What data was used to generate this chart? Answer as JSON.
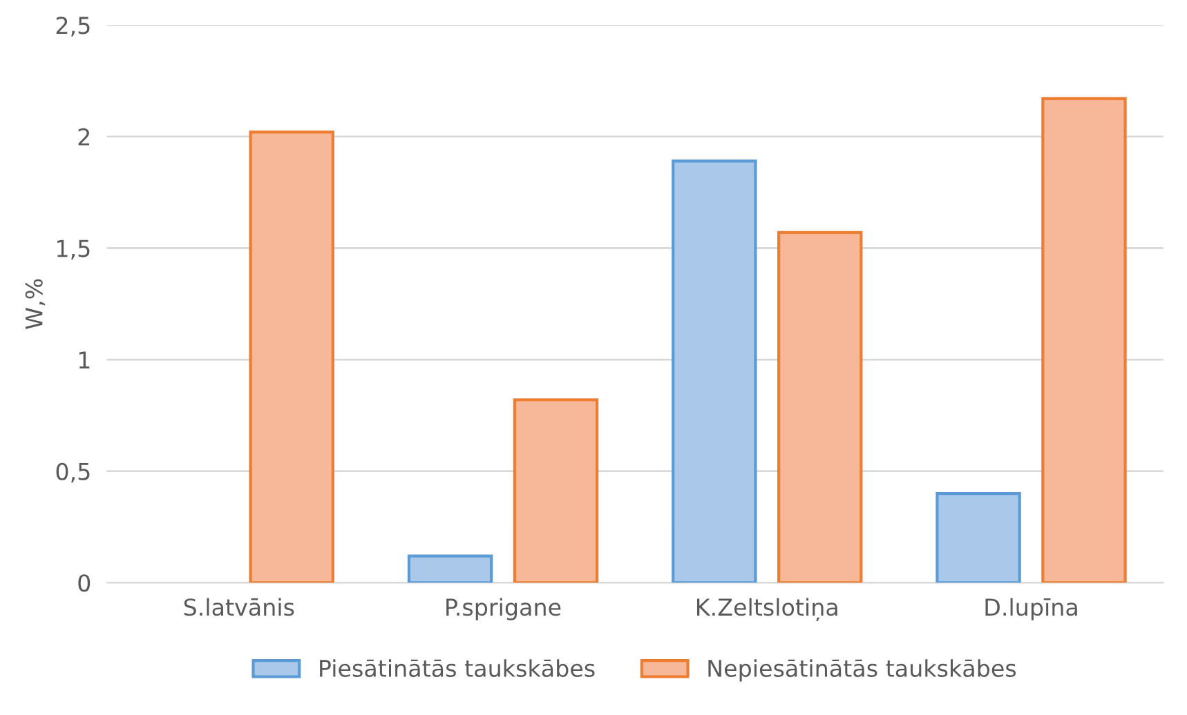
{
  "chart_data": {
    "type": "bar",
    "ylabel": "W,%",
    "categories": [
      "S.latvānis",
      "P.sprigane",
      "K.Zeltslotiņa",
      "D.lupīna"
    ],
    "series": [
      {
        "name": "Piesātinātās taukskābes",
        "color": "#a9c8ea",
        "values": [
          null,
          0.12,
          1.89,
          0.4
        ]
      },
      {
        "name": "Nepiesātinātās taukskābes",
        "color": "#f7b89a",
        "values": [
          2.02,
          0.82,
          1.57,
          2.17
        ]
      }
    ],
    "ylim": [
      0,
      2.5
    ],
    "yticks": [
      0,
      {
        "value": 0.5,
        "label": "0,5"
      },
      1,
      {
        "value": 1.5,
        "label": "1,5"
      },
      2,
      {
        "value": 2.5,
        "label": "2,5"
      }
    ],
    "grid": "y",
    "legend": "bottom"
  }
}
